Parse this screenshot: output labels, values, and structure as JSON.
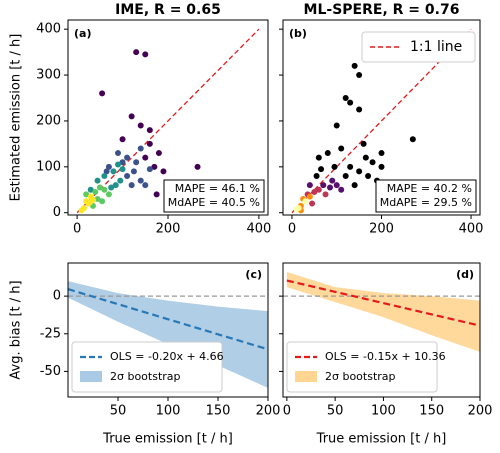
{
  "chart_data": [
    {
      "type": "scatter",
      "title": "IME, R = 0.65",
      "tag": "(a)",
      "ylabel": "Estimated emission [t / h]",
      "xlim": [
        -20,
        420
      ],
      "ylim": [
        -5,
        420
      ],
      "xticks": [
        0,
        200,
        400
      ],
      "yticks": [
        0,
        100,
        200,
        300,
        400
      ],
      "ytick_labels": true,
      "points": {
        "x": [
          130,
          150,
          55,
          120,
          140,
          265,
          160,
          100,
          190,
          200,
          175,
          170,
          150,
          180,
          160,
          130,
          90,
          110,
          160,
          140,
          150,
          100,
          140,
          120,
          125,
          65,
          110,
          70,
          60,
          80,
          100,
          85,
          95,
          75,
          45,
          30,
          90,
          50,
          60,
          70,
          45,
          55,
          40,
          20,
          35,
          30,
          20,
          25,
          15,
          10,
          35,
          28
        ],
        "values": [
          350,
          345,
          260,
          210,
          190,
          100,
          180,
          160,
          90,
          60,
          40,
          100,
          120,
          130,
          150,
          110,
          130,
          120,
          95,
          70,
          60,
          110,
          140,
          60,
          90,
          90,
          80,
          100,
          80,
          90,
          95,
          60,
          70,
          55,
          70,
          50,
          105,
          55,
          50,
          40,
          30,
          25,
          45,
          40,
          15,
          35,
          25,
          20,
          10,
          5,
          28,
          22
        ],
        "colors": [
          "#440154",
          "#440154",
          "#440154",
          "#440154",
          "#440154",
          "#440154",
          "#440154",
          "#440154",
          "#440154",
          "#440154",
          "#440154",
          "#440154",
          "#440154",
          "#440154",
          "#440154",
          "#3b528b",
          "#3b528b",
          "#3b528b",
          "#3b528b",
          "#3b528b",
          "#3b528b",
          "#3b528b",
          "#3b528b",
          "#3b528b",
          "#3b528b",
          "#3b528b",
          "#3b528b",
          "#3b528b",
          "#21918c",
          "#21918c",
          "#21918c",
          "#21918c",
          "#21918c",
          "#21918c",
          "#21918c",
          "#21918c",
          "#21918c",
          "#5ec962",
          "#5ec962",
          "#5ec962",
          "#5ec962",
          "#5ec962",
          "#5ec962",
          "#5ec962",
          "#5ec962",
          "#fde725",
          "#fde725",
          "#fde725",
          "#fde725",
          "#fde725",
          "#fde725",
          "#fde725"
        ]
      },
      "reference_line": {
        "x": [
          0,
          400
        ],
        "values": [
          0,
          400
        ],
        "color": "#e41a1c"
      },
      "annotation": [
        "MAPE = 46.1 %",
        "MdAPE = 40.5 %"
      ]
    },
    {
      "type": "scatter",
      "title": "ML-SPERE, R = 0.76",
      "tag": "(b)",
      "xlim": [
        -20,
        420
      ],
      "ylim": [
        -5,
        420
      ],
      "xticks": [
        0,
        200,
        400
      ],
      "yticks": [
        0,
        100,
        200,
        300,
        400
      ],
      "ytick_labels": false,
      "points": {
        "x": [
          140,
          150,
          130,
          120,
          150,
          100,
          160,
          165,
          270,
          200,
          180,
          110,
          80,
          60,
          200,
          190,
          170,
          130,
          150,
          95,
          120,
          65,
          55,
          140,
          90,
          70,
          100,
          110,
          85,
          40,
          50,
          60,
          75,
          45,
          35,
          40,
          25,
          20,
          20,
          30,
          15,
          10
        ],
        "values": [
          320,
          300,
          240,
          250,
          225,
          190,
          150,
          120,
          160,
          130,
          110,
          140,
          130,
          120,
          100,
          70,
          80,
          100,
          90,
          100,
          80,
          95,
          80,
          60,
          70,
          60,
          60,
          50,
          55,
          60,
          45,
          50,
          40,
          20,
          40,
          35,
          30,
          15,
          5,
          25,
          10,
          8
        ],
        "colors": [
          "#000000",
          "#000000",
          "#000000",
          "#000000",
          "#000000",
          "#000000",
          "#000000",
          "#000000",
          "#000000",
          "#000000",
          "#000000",
          "#000000",
          "#000000",
          "#000000",
          "#000000",
          "#000000",
          "#000000",
          "#000000",
          "#000000",
          "#000000",
          "#000000",
          "#000000",
          "#000000",
          "#000000",
          "#57106e",
          "#57106e",
          "#57106e",
          "#57106e",
          "#57106e",
          "#57106e",
          "#bc3754",
          "#bc3754",
          "#bc3754",
          "#bc3754",
          "#bc3754",
          "#f98e09",
          "#f98e09",
          "#f98e09",
          "#f98e09",
          "#fcffa4",
          "#fcffa4",
          "#fcffa4"
        ]
      },
      "reference_line": {
        "name": "1:1 line",
        "x": [
          0,
          400
        ],
        "values": [
          0,
          400
        ],
        "color": "#e41a1c"
      },
      "annotation": [
        "MAPE = 40.2 %",
        "MdAPE = 29.5 %"
      ]
    },
    {
      "type": "line",
      "tag": "(c)",
      "ylabel": "Avg. bias [t / h]",
      "xlabel": "True emission [t / h]",
      "xlim": [
        0,
        200
      ],
      "ylim": [
        -67,
        22
      ],
      "xticks": [
        50,
        100,
        150,
        200
      ],
      "yticks": [
        0,
        -25,
        -50
      ],
      "ytick_labels": true,
      "hline": {
        "value": 0,
        "color": "#999999"
      },
      "series": [
        {
          "name": "OLS = -0.20x + 4.66",
          "color": "#2878b5",
          "x": [
            0,
            200
          ],
          "values": [
            4.66,
            -35.34
          ]
        }
      ],
      "band": {
        "name": "2σ bootstrap",
        "color": "#a9c9e4",
        "x": [
          0,
          50,
          100,
          150,
          200
        ],
        "lower": [
          -1,
          -17,
          -32,
          -46,
          -61
        ],
        "upper": [
          10,
          2,
          -3,
          -7,
          -10
        ]
      }
    },
    {
      "type": "line",
      "tag": "(d)",
      "xlabel": "True emission [t / h]",
      "xlim": [
        -4,
        200
      ],
      "ylim": [
        -67,
        22
      ],
      "xticks": [
        0,
        50,
        100,
        150,
        200
      ],
      "yticks": [
        0,
        -25,
        -50
      ],
      "ytick_labels": false,
      "hline": {
        "value": 0,
        "color": "#999999"
      },
      "series": [
        {
          "name": "OLS = -0.15x + 10.36",
          "color": "#e41a1c",
          "x": [
            0,
            200
          ],
          "values": [
            10.36,
            -19.64
          ]
        }
      ],
      "band": {
        "name": "2σ bootstrap",
        "color": "#ffd591",
        "x": [
          0,
          50,
          100,
          150,
          200
        ],
        "lower": [
          6,
          -4,
          -14,
          -26,
          -37
        ],
        "upper": [
          16,
          6,
          2,
          0,
          -3
        ]
      }
    }
  ]
}
